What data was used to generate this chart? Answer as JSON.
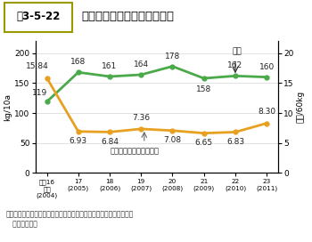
{
  "title_box": "嘰3-5-22",
  "title_main": "大豆の単収と落札価格の推移",
  "years": [
    0,
    1,
    2,
    3,
    4,
    5,
    6,
    7
  ],
  "x_labels": [
    "平成16\n年産\n(2004)",
    "17\n(2005)",
    "18\n(2006)",
    "19\n(2007)",
    "20\n(2008)",
    "21\n(2009)",
    "22\n(2010)",
    "23\n(2011)"
  ],
  "tanshu": [
    119,
    168,
    161,
    164,
    178,
    158,
    162,
    160
  ],
  "tanshu_labels": [
    "119",
    "168",
    "161",
    "164",
    "178",
    "158",
    "162",
    "160"
  ],
  "rakusatsu": [
    15.84,
    6.93,
    6.84,
    7.36,
    7.08,
    6.65,
    6.83,
    8.3
  ],
  "rakusatsu_labels": [
    "15.84",
    "6.93",
    "6.84",
    "7.36",
    "7.08",
    "6.65",
    "6.83",
    "8.30"
  ],
  "tanshu_color": "#4aaa4a",
  "rakusatsu_color": "#e8a020",
  "left_ylabel": "kg/10a",
  "right_ylabel": "千円/60kg",
  "left_ylim": [
    0,
    220
  ],
  "right_ylim": [
    0,
    22
  ],
  "left_yticks": [
    0,
    50,
    100,
    150,
    200
  ],
  "right_yticks": [
    0,
    5,
    10,
    15,
    20
  ],
  "annotation_tanshu": "単収",
  "annotation_rakusatsu": "大豆落札価格（右目盛）",
  "footer": "資料：農林水産省「作物統計」、（財）日本特産農産物協会「大豆入\n   札取引結果」",
  "bg_color": "#ffffff",
  "title_bg": "#f0ebb0",
  "border_color": "#999900"
}
